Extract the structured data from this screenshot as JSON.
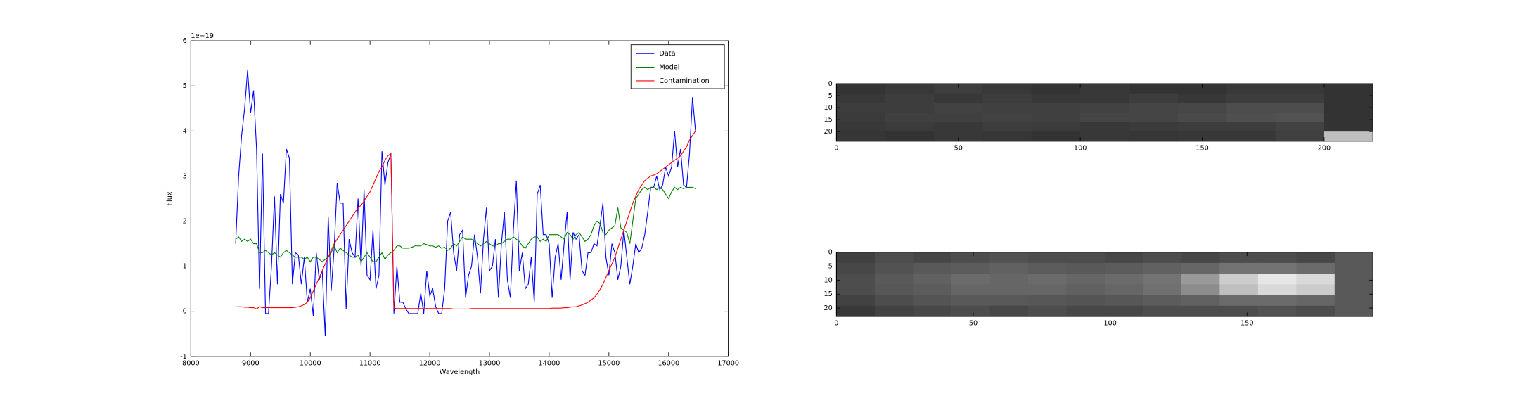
{
  "chart_data": [
    {
      "type": "line",
      "xlabel": "Wavelength",
      "ylabel": "Flux",
      "offset_text": "1e−19",
      "xlim": [
        8000,
        17000
      ],
      "xticks": [
        8000,
        9000,
        10000,
        11000,
        12000,
        13000,
        14000,
        15000,
        16000,
        17000
      ],
      "ylim": [
        -1,
        6
      ],
      "yticks": [
        -1,
        0,
        1,
        2,
        3,
        4,
        5,
        6
      ],
      "legend": "upper right",
      "x": [
        8750,
        8800,
        8850,
        8900,
        8950,
        9000,
        9050,
        9100,
        9150,
        9200,
        9250,
        9300,
        9350,
        9400,
        9450,
        9500,
        9550,
        9600,
        9650,
        9700,
        9750,
        9800,
        9850,
        9900,
        9950,
        10000,
        10050,
        10100,
        10150,
        10200,
        10250,
        10300,
        10350,
        10400,
        10450,
        10500,
        10550,
        10600,
        10650,
        10700,
        10750,
        10800,
        10850,
        10900,
        10950,
        11000,
        11050,
        11100,
        11150,
        11200,
        11250,
        11300,
        11350,
        11400,
        11450,
        11500,
        11550,
        11600,
        11650,
        11700,
        11750,
        11800,
        11850,
        11900,
        11950,
        12000,
        12050,
        12100,
        12150,
        12200,
        12250,
        12300,
        12350,
        12400,
        12450,
        12500,
        12550,
        12600,
        12650,
        12700,
        12750,
        12800,
        12850,
        12900,
        12950,
        13000,
        13050,
        13100,
        13150,
        13200,
        13250,
        13300,
        13350,
        13400,
        13450,
        13500,
        13550,
        13600,
        13650,
        13700,
        13750,
        13800,
        13850,
        13900,
        13950,
        14000,
        14050,
        14100,
        14150,
        14200,
        14250,
        14300,
        14350,
        14400,
        14450,
        14500,
        14550,
        14600,
        14650,
        14700,
        14750,
        14800,
        14850,
        14900,
        14950,
        15000,
        15050,
        15100,
        15150,
        15200,
        15250,
        15300,
        15350,
        15400,
        15450,
        15500,
        15550,
        15600,
        15650,
        15700,
        15750,
        15800,
        15850,
        15900,
        15950,
        16000,
        16050,
        16100,
        16150,
        16200,
        16250,
        16300,
        16350,
        16400,
        16450
      ],
      "series": [
        {
          "name": "Data",
          "color": "#0000ff",
          "values": [
            1.5,
            3.0,
            3.9,
            4.5,
            5.35,
            4.4,
            4.9,
            3.6,
            0.5,
            3.5,
            -0.05,
            -0.05,
            1.0,
            2.55,
            0.6,
            2.6,
            2.4,
            3.6,
            3.4,
            0.6,
            1.3,
            1.25,
            0.6,
            1.2,
            0.2,
            0.5,
            -0.1,
            1.3,
            0.7,
            0.9,
            -0.55,
            2.1,
            0.45,
            1.4,
            2.85,
            2.4,
            2.4,
            0.05,
            1.6,
            1.3,
            1.2,
            2.5,
            1.0,
            2.7,
            0.8,
            0.7,
            1.8,
            0.5,
            0.8,
            3.55,
            2.8,
            3.3,
            3.5,
            -0.05,
            1.0,
            0.2,
            0.2,
            0.05,
            -0.05,
            -0.05,
            -0.05,
            -0.05,
            0.4,
            -0.05,
            0.9,
            0.35,
            0.5,
            0.1,
            -0.05,
            -0.05,
            0.5,
            2.0,
            2.2,
            1.3,
            0.9,
            1.7,
            1.8,
            0.3,
            0.8,
            1.0,
            1.7,
            1.2,
            0.4,
            1.6,
            2.3,
            0.9,
            1.0,
            1.6,
            0.3,
            1.5,
            2.2,
            0.7,
            0.3,
            1.8,
            2.9,
            0.9,
            1.3,
            0.5,
            0.6,
            1.2,
            0.2,
            2.6,
            2.8,
            1.7,
            1.7,
            1.5,
            0.3,
            1.2,
            1.5,
            0.7,
            1.5,
            2.2,
            0.7,
            1.75,
            1.6,
            1.7,
            0.9,
            0.8,
            1.3,
            1.3,
            1.5,
            1.45,
            1.9,
            2.4,
            1.2,
            0.8,
            1.5,
            1.3,
            0.7,
            1.0,
            1.8,
            1.2,
            0.6,
            1.0,
            1.5,
            1.3,
            1.4,
            1.7,
            2.2,
            2.75,
            2.75,
            3.0,
            2.7,
            2.8,
            3.2,
            3.0,
            3.2,
            4.0,
            3.2,
            3.6,
            2.8,
            2.75,
            3.5,
            4.75,
            4.0
          ]
        },
        {
          "name": "Model",
          "color": "#008000",
          "values": [
            1.6,
            1.65,
            1.55,
            1.6,
            1.55,
            1.6,
            1.5,
            1.5,
            1.3,
            1.3,
            1.35,
            1.3,
            1.25,
            1.3,
            1.25,
            1.2,
            1.3,
            1.35,
            1.3,
            1.25,
            1.2,
            1.2,
            1.2,
            1.15,
            1.2,
            1.1,
            1.2,
            1.2,
            1.15,
            1.1,
            1.15,
            1.2,
            1.3,
            1.45,
            1.3,
            1.4,
            1.35,
            1.3,
            1.25,
            1.2,
            1.2,
            1.25,
            1.1,
            1.2,
            1.3,
            1.2,
            1.1,
            1.1,
            1.2,
            1.3,
            1.15,
            1.25,
            1.3,
            1.35,
            1.45,
            1.45,
            1.4,
            1.4,
            1.4,
            1.42,
            1.45,
            1.45,
            1.45,
            1.5,
            1.48,
            1.45,
            1.45,
            1.42,
            1.45,
            1.4,
            1.42,
            1.35,
            1.4,
            1.5,
            1.45,
            1.55,
            1.65,
            1.6,
            1.6,
            1.6,
            1.55,
            1.5,
            1.45,
            1.5,
            1.55,
            1.5,
            1.45,
            1.45,
            1.5,
            1.5,
            1.55,
            1.6,
            1.6,
            1.65,
            1.6,
            1.55,
            1.45,
            1.4,
            1.5,
            1.6,
            1.65,
            1.65,
            1.55,
            1.6,
            1.55,
            1.7,
            1.7,
            1.7,
            1.7,
            1.65,
            1.6,
            1.75,
            1.7,
            1.6,
            1.7,
            1.75,
            1.65,
            1.55,
            1.6,
            1.7,
            1.9,
            2.0,
            1.95,
            1.75,
            1.7,
            1.8,
            1.85,
            1.9,
            2.3,
            1.85,
            1.8,
            1.75,
            1.5,
            2.0,
            2.5,
            2.6,
            2.7,
            2.75,
            2.7,
            2.75,
            2.75,
            2.7,
            2.75,
            2.7,
            2.6,
            2.5,
            2.65,
            2.75,
            2.7,
            2.75,
            2.72,
            2.75,
            2.75,
            2.75,
            2.72
          ]
        },
        {
          "name": "Contamination",
          "color": "#ff0000",
          "values": [
            0.1,
            0.1,
            0.1,
            0.09,
            0.09,
            0.08,
            0.08,
            0.05,
            0.1,
            0.08,
            0.08,
            0.08,
            0.08,
            0.08,
            0.08,
            0.08,
            0.08,
            0.08,
            0.08,
            0.08,
            0.09,
            0.1,
            0.12,
            0.15,
            0.2,
            0.3,
            0.45,
            0.6,
            0.75,
            0.9,
            1.05,
            1.2,
            1.35,
            1.5,
            1.6,
            1.7,
            1.8,
            1.9,
            2.0,
            2.1,
            2.2,
            2.3,
            2.35,
            2.45,
            2.55,
            2.65,
            2.8,
            2.95,
            3.1,
            3.2,
            3.35,
            3.45,
            3.5,
            0.07,
            0.06,
            0.06,
            0.06,
            0.06,
            0.06,
            0.06,
            0.06,
            0.06,
            0.06,
            0.06,
            0.06,
            0.06,
            0.06,
            0.06,
            0.06,
            0.06,
            0.06,
            0.06,
            0.06,
            0.05,
            0.05,
            0.05,
            0.05,
            0.05,
            0.05,
            0.06,
            0.06,
            0.06,
            0.06,
            0.06,
            0.06,
            0.06,
            0.06,
            0.06,
            0.06,
            0.06,
            0.06,
            0.06,
            0.06,
            0.06,
            0.06,
            0.06,
            0.06,
            0.06,
            0.06,
            0.06,
            0.06,
            0.06,
            0.06,
            0.06,
            0.06,
            0.06,
            0.07,
            0.07,
            0.07,
            0.07,
            0.08,
            0.08,
            0.09,
            0.1,
            0.1,
            0.12,
            0.14,
            0.17,
            0.2,
            0.25,
            0.3,
            0.38,
            0.48,
            0.6,
            0.75,
            0.9,
            1.05,
            1.2,
            1.4,
            1.6,
            1.8,
            2.0,
            2.2,
            2.4,
            2.55,
            2.7,
            2.8,
            2.9,
            2.95,
            3.0,
            3.02,
            3.05,
            3.1,
            3.15,
            3.2,
            3.25,
            3.3,
            3.35,
            3.4,
            3.45,
            3.55,
            3.65,
            3.8,
            3.9,
            4.0
          ]
        }
      ]
    },
    {
      "type": "image",
      "xlim": [
        0,
        220
      ],
      "xticks": [
        0,
        50,
        100,
        150,
        200
      ],
      "ylim": [
        24,
        0
      ],
      "yticks": [
        0,
        5,
        10,
        15,
        20
      ],
      "pixels": [
        [
          0.2,
          0.22,
          0.24,
          0.22,
          0.2,
          0.22,
          0.2,
          0.2,
          0.22,
          0.22,
          0.2
        ],
        [
          0.22,
          0.24,
          0.22,
          0.24,
          0.22,
          0.22,
          0.24,
          0.22,
          0.24,
          0.24,
          0.2
        ],
        [
          0.24,
          0.24,
          0.26,
          0.25,
          0.25,
          0.26,
          0.27,
          0.28,
          0.3,
          0.3,
          0.2
        ],
        [
          0.23,
          0.25,
          0.25,
          0.26,
          0.25,
          0.27,
          0.27,
          0.29,
          0.31,
          0.32,
          0.2
        ],
        [
          0.22,
          0.23,
          0.22,
          0.24,
          0.23,
          0.22,
          0.23,
          0.24,
          0.24,
          0.26,
          0.2
        ],
        [
          0.21,
          0.2,
          0.22,
          0.21,
          0.2,
          0.22,
          0.21,
          0.22,
          0.22,
          0.25,
          0.75
        ]
      ]
    },
    {
      "type": "image",
      "xlim": [
        0,
        196
      ],
      "xticks": [
        0,
        50,
        100,
        150
      ],
      "ylim": [
        23,
        0
      ],
      "yticks": [
        0,
        5,
        10,
        15,
        20
      ],
      "pixels": [
        [
          0.25,
          0.3,
          0.28,
          0.3,
          0.32,
          0.3,
          0.3,
          0.28,
          0.3,
          0.28,
          0.3,
          0.3,
          0.28,
          0.35
        ],
        [
          0.28,
          0.32,
          0.35,
          0.36,
          0.38,
          0.36,
          0.35,
          0.36,
          0.38,
          0.4,
          0.45,
          0.45,
          0.42,
          0.35
        ],
        [
          0.3,
          0.35,
          0.38,
          0.42,
          0.4,
          0.42,
          0.4,
          0.42,
          0.45,
          0.6,
          0.8,
          0.9,
          0.85,
          0.35
        ],
        [
          0.3,
          0.34,
          0.36,
          0.4,
          0.4,
          0.4,
          0.38,
          0.4,
          0.44,
          0.55,
          0.75,
          0.85,
          0.8,
          0.35
        ],
        [
          0.26,
          0.3,
          0.33,
          0.35,
          0.35,
          0.34,
          0.33,
          0.34,
          0.36,
          0.38,
          0.42,
          0.42,
          0.4,
          0.35
        ],
        [
          0.22,
          0.26,
          0.28,
          0.3,
          0.28,
          0.3,
          0.28,
          0.28,
          0.3,
          0.3,
          0.3,
          0.32,
          0.3,
          0.35
        ]
      ]
    }
  ]
}
